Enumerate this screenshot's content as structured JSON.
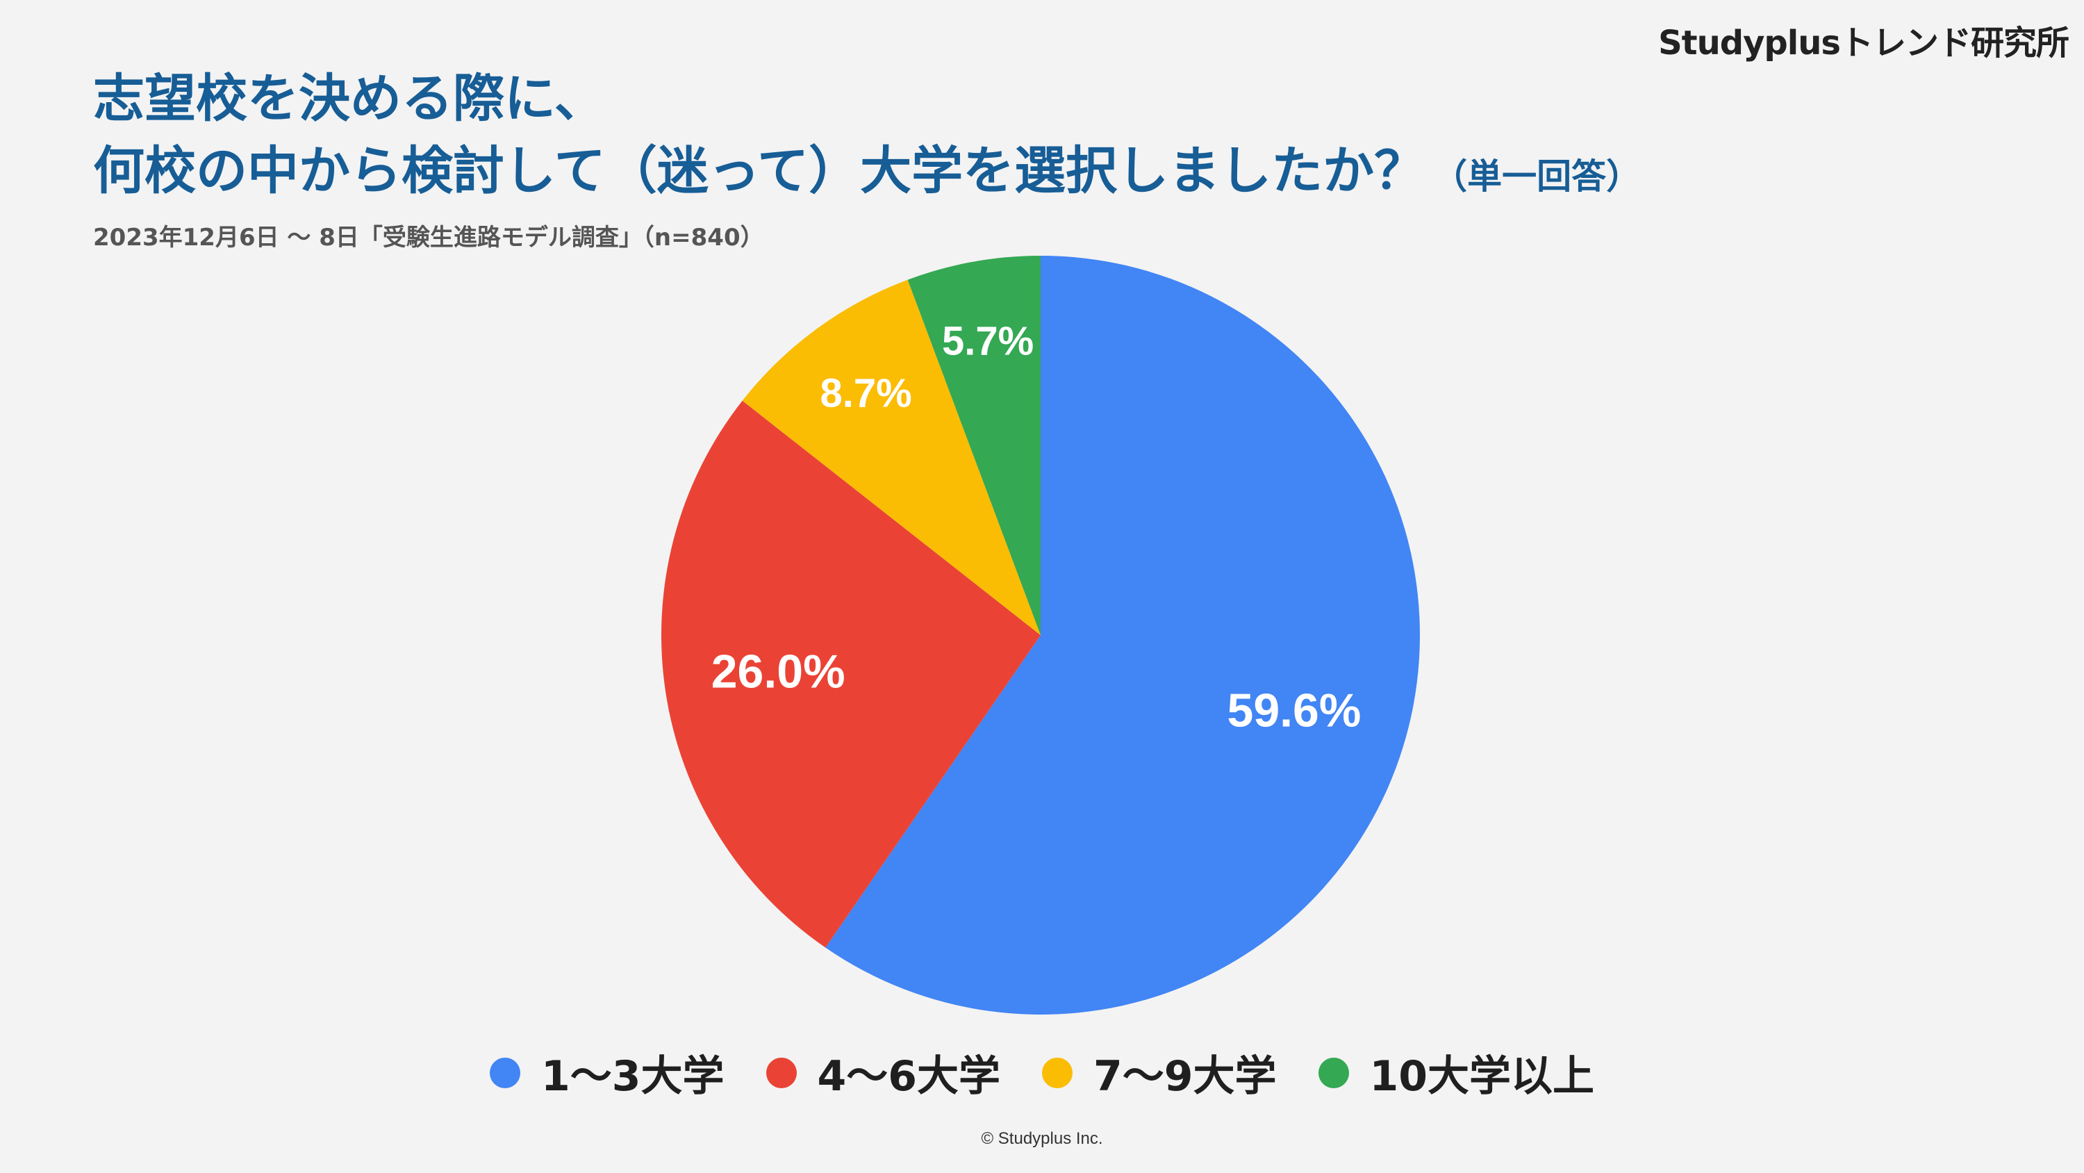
{
  "brand": "Studyplusトレンド研究所",
  "title_line1": "志望校を決める際に、",
  "title_line2": "何校の中から検討して（迷って）大学を選択しましたか？",
  "title_note": "（単一回答）",
  "subtitle": "2023年12月6日 〜 8日「受験生進路モデル調査」（n=840）",
  "copyright": "© Studyplus Inc.",
  "chart_data": {
    "type": "pie",
    "categories": [
      "1〜3大学",
      "4〜6大学",
      "7〜9大学",
      "10大学以上"
    ],
    "values": [
      59.6,
      26.0,
      8.7,
      5.7
    ],
    "value_labels": [
      "59.6%",
      "26.0%",
      "8.7%",
      "5.7%"
    ],
    "colors": [
      "#4285f4",
      "#ea4335",
      "#fbbc04",
      "#34a853"
    ],
    "legend_position": "bottom"
  }
}
